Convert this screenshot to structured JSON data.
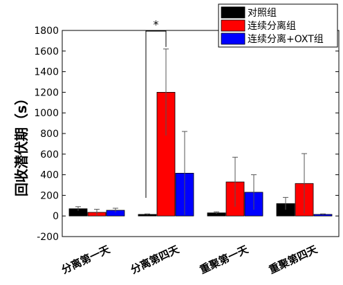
{
  "chart_data": {
    "type": "bar",
    "categories": [
      "分离第一天",
      "分离第四天",
      "重聚第一天",
      "重聚第四天"
    ],
    "series": [
      {
        "name": "对照组",
        "color": "#000000",
        "values": [
          70,
          15,
          30,
          120
        ],
        "errors": [
          20,
          5,
          10,
          60
        ]
      },
      {
        "name": "连续分离组",
        "color": "#ff0000",
        "values": [
          35,
          1200,
          330,
          315
        ],
        "errors": [
          30,
          420,
          240,
          290
        ]
      },
      {
        "name": "连续分离+OXT组",
        "color": "#0000ff",
        "values": [
          55,
          415,
          230,
          15
        ],
        "errors": [
          20,
          405,
          170,
          5
        ]
      }
    ],
    "ylabel": "回收潜伏期（s）",
    "ylim": [
      -200,
      1800
    ],
    "yticks": [
      -200,
      0,
      200,
      400,
      600,
      800,
      1000,
      1200,
      1400,
      1600,
      1800
    ],
    "significance": {
      "label": "*",
      "category_index": 1,
      "between_series": [
        0,
        1
      ]
    },
    "legend_position": "top-right"
  }
}
